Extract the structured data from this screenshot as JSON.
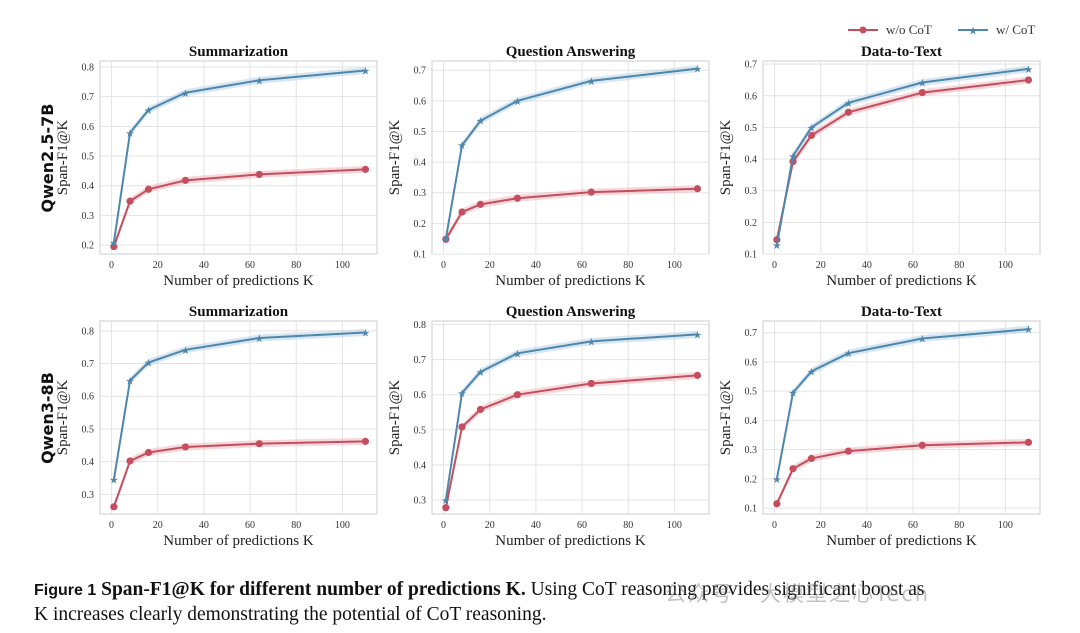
{
  "legend": {
    "without_cot": "w/o CoT",
    "with_cot": "w/ CoT"
  },
  "colors": {
    "without_cot": "#c44e5e",
    "with_cot": "#4e87ab",
    "band_red": "#f0b8c0",
    "band_blue": "#b8d4e6"
  },
  "row_labels": [
    "Qwen2.5-7B",
    "Qwen3-8B"
  ],
  "caption": {
    "label": "Figure 1",
    "title": "Span-F1@K for different number of predictions K.",
    "body_line1": "Using CoT reasoning provides significant boost as",
    "body_line2": "K increases clearly demonstrating the potential of CoT reasoning."
  },
  "watermark": "公众号 · 大模型之心Tech",
  "chart_data": [
    {
      "type": "line",
      "title": "Summarization",
      "xlabel": "Number of predictions K",
      "ylabel": "Span-F1@K",
      "row": "Qwen2.5-7B",
      "x": [
        1,
        8,
        16,
        32,
        64,
        110
      ],
      "xlim": [
        -5,
        115
      ],
      "xticks": [
        0,
        20,
        40,
        60,
        80,
        100
      ],
      "ylim": [
        0.17,
        0.82
      ],
      "yticks": [
        0.2,
        0.3,
        0.4,
        0.5,
        0.6,
        0.7,
        0.8
      ],
      "series": [
        {
          "name": "w/o CoT",
          "values": [
            0.195,
            0.348,
            0.388,
            0.418,
            0.438,
            0.455
          ]
        },
        {
          "name": "w/ CoT",
          "values": [
            0.208,
            0.578,
            0.655,
            0.713,
            0.755,
            0.788
          ]
        }
      ]
    },
    {
      "type": "line",
      "title": "Question Answering",
      "xlabel": "Number of predictions K",
      "ylabel": "Span-F1@K",
      "row": "Qwen2.5-7B",
      "x": [
        1,
        8,
        16,
        32,
        64,
        110
      ],
      "xlim": [
        -5,
        115
      ],
      "xticks": [
        0,
        20,
        40,
        60,
        80,
        100
      ],
      "ylim": [
        0.1,
        0.73
      ],
      "yticks": [
        0.1,
        0.2,
        0.3,
        0.4,
        0.5,
        0.6,
        0.7
      ],
      "series": [
        {
          "name": "w/o CoT",
          "values": [
            0.148,
            0.237,
            0.262,
            0.282,
            0.302,
            0.313
          ]
        },
        {
          "name": "w/ CoT",
          "values": [
            0.15,
            0.455,
            0.535,
            0.6,
            0.665,
            0.705
          ]
        }
      ]
    },
    {
      "type": "line",
      "title": "Data-to-Text",
      "xlabel": "Number of predictions K",
      "ylabel": "Span-F1@K",
      "row": "Qwen2.5-7B",
      "x": [
        1,
        8,
        16,
        32,
        64,
        110
      ],
      "xlim": [
        -5,
        115
      ],
      "xticks": [
        0,
        20,
        40,
        60,
        80,
        100
      ],
      "ylim": [
        0.1,
        0.71
      ],
      "yticks": [
        0.1,
        0.2,
        0.3,
        0.4,
        0.5,
        0.6,
        0.7
      ],
      "series": [
        {
          "name": "w/o CoT",
          "values": [
            0.145,
            0.392,
            0.475,
            0.548,
            0.61,
            0.65
          ]
        },
        {
          "name": "w/ CoT",
          "values": [
            0.128,
            0.41,
            0.5,
            0.578,
            0.642,
            0.685
          ]
        }
      ]
    },
    {
      "type": "line",
      "title": "Summarization",
      "xlabel": "Number of predictions K",
      "ylabel": "Span-F1@K",
      "row": "Qwen3-8B",
      "x": [
        1,
        8,
        16,
        32,
        64,
        110
      ],
      "xlim": [
        -5,
        115
      ],
      "xticks": [
        0,
        20,
        40,
        60,
        80,
        100
      ],
      "ylim": [
        0.24,
        0.83
      ],
      "yticks": [
        0.3,
        0.4,
        0.5,
        0.6,
        0.7,
        0.8
      ],
      "series": [
        {
          "name": "w/o CoT",
          "values": [
            0.262,
            0.402,
            0.428,
            0.445,
            0.455,
            0.462
          ]
        },
        {
          "name": "w/ CoT",
          "values": [
            0.345,
            0.648,
            0.703,
            0.742,
            0.778,
            0.795
          ]
        }
      ]
    },
    {
      "type": "line",
      "title": "Question Answering",
      "xlabel": "Number of predictions K",
      "ylabel": "Span-F1@K",
      "row": "Qwen3-8B",
      "x": [
        1,
        8,
        16,
        32,
        64,
        110
      ],
      "xlim": [
        -5,
        115
      ],
      "xticks": [
        0,
        20,
        40,
        60,
        80,
        100
      ],
      "ylim": [
        0.26,
        0.81
      ],
      "yticks": [
        0.3,
        0.4,
        0.5,
        0.6,
        0.7,
        0.8
      ],
      "series": [
        {
          "name": "w/o CoT",
          "values": [
            0.278,
            0.508,
            0.558,
            0.6,
            0.632,
            0.655
          ]
        },
        {
          "name": "w/ CoT",
          "values": [
            0.3,
            0.605,
            0.665,
            0.718,
            0.752,
            0.772
          ]
        }
      ]
    },
    {
      "type": "line",
      "title": "Data-to-Text",
      "xlabel": "Number of predictions K",
      "ylabel": "Span-F1@K",
      "row": "Qwen3-8B",
      "x": [
        1,
        8,
        16,
        32,
        64,
        110
      ],
      "xlim": [
        -5,
        115
      ],
      "xticks": [
        0,
        20,
        40,
        60,
        80,
        100
      ],
      "ylim": [
        0.08,
        0.74
      ],
      "yticks": [
        0.1,
        0.2,
        0.3,
        0.4,
        0.5,
        0.6,
        0.7
      ],
      "series": [
        {
          "name": "w/o CoT",
          "values": [
            0.115,
            0.235,
            0.27,
            0.295,
            0.315,
            0.325
          ]
        },
        {
          "name": "w/ CoT",
          "values": [
            0.2,
            0.495,
            0.568,
            0.63,
            0.68,
            0.712
          ]
        }
      ]
    }
  ]
}
